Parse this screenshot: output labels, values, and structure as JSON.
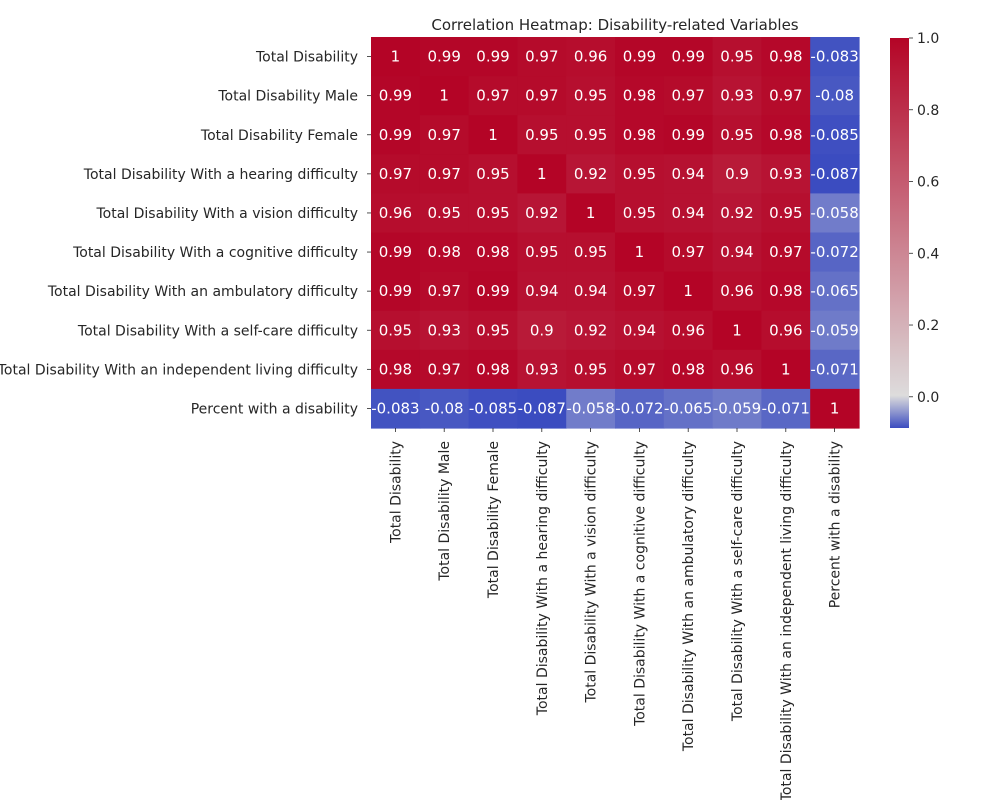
{
  "chart_data": {
    "type": "heatmap",
    "title": "Correlation Heatmap: Disability-related Variables",
    "row_labels": [
      "Total Disability ",
      "Total Disability  Male",
      "Total Disability Female",
      "Total Disability  With a hearing difficulty",
      "Total Disability  With a vision difficulty",
      "Total Disability  With a cognitive difficulty",
      "Total Disability  With an ambulatory difficulty",
      "Total Disability  With a self-care difficulty",
      "Total Disability With an independent living difficulty",
      "Percent with a disability"
    ],
    "col_labels": [
      "Total Disability ",
      "Total Disability  Male",
      "Total Disability Female",
      "Total Disability  With a hearing difficulty",
      "Total Disability  With a vision difficulty",
      "Total Disability  With a cognitive difficulty",
      "Total Disability  With an ambulatory difficulty",
      "Total Disability  With a self-care difficulty",
      "Total Disability With an independent living difficulty",
      "Percent with a disability"
    ],
    "values": [
      [
        1,
        0.99,
        0.99,
        0.97,
        0.96,
        0.99,
        0.99,
        0.95,
        0.98,
        -0.083
      ],
      [
        0.99,
        1,
        0.97,
        0.97,
        0.95,
        0.98,
        0.97,
        0.93,
        0.97,
        -0.08
      ],
      [
        0.99,
        0.97,
        1,
        0.95,
        0.95,
        0.98,
        0.99,
        0.95,
        0.98,
        -0.085
      ],
      [
        0.97,
        0.97,
        0.95,
        1,
        0.92,
        0.95,
        0.94,
        0.9,
        0.93,
        -0.087
      ],
      [
        0.96,
        0.95,
        0.95,
        0.92,
        1,
        0.95,
        0.94,
        0.92,
        0.95,
        -0.058
      ],
      [
        0.99,
        0.98,
        0.98,
        0.95,
        0.95,
        1,
        0.97,
        0.94,
        0.97,
        -0.072
      ],
      [
        0.99,
        0.97,
        0.99,
        0.94,
        0.94,
        0.97,
        1,
        0.96,
        0.98,
        -0.065
      ],
      [
        0.95,
        0.93,
        0.95,
        0.9,
        0.92,
        0.94,
        0.96,
        1,
        0.96,
        -0.059
      ],
      [
        0.98,
        0.97,
        0.98,
        0.93,
        0.95,
        0.97,
        0.98,
        0.96,
        1,
        -0.071
      ],
      [
        -0.083,
        -0.08,
        -0.085,
        -0.087,
        -0.058,
        -0.072,
        -0.065,
        -0.059,
        -0.071,
        1
      ]
    ],
    "colormap": "coolwarm",
    "color_range": [
      -0.087,
      1
    ],
    "colorbar_ticks": [
      0.0,
      0.2,
      0.4,
      0.6,
      0.8,
      1.0
    ],
    "annotated": true
  }
}
